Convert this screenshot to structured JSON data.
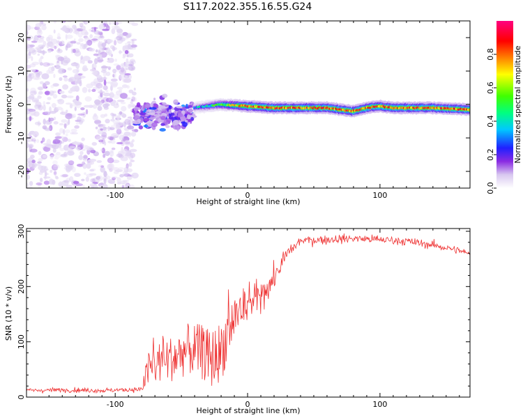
{
  "figure": {
    "title": "S117.2022.355.16.55.G24"
  },
  "chart_data": [
    {
      "type": "heatmap",
      "title": "S117.2022.355.16.55.G24",
      "xlabel": "Height of straight line (km)",
      "ylabel": "Frequency (Hz)",
      "xlim": [
        -167,
        168
      ],
      "ylim": [
        -25,
        25
      ],
      "x_ticks": [
        -100,
        0,
        100
      ],
      "y_ticks": [
        -20,
        -10,
        0,
        10,
        20
      ],
      "colorbar": {
        "label": "Normalized spectral amplitude",
        "range": [
          0,
          1
        ],
        "ticks": [
          0.0,
          0.2,
          0.4,
          0.6,
          0.8
        ],
        "colormap": [
          "#ffffff",
          "#d8c8f0",
          "#8a2be2",
          "#2020ff",
          "#00c8ff",
          "#00ff80",
          "#40ff00",
          "#ffff00",
          "#ff8000",
          "#ff0000",
          "#ff0080"
        ]
      },
      "regions": [
        {
          "x": [
            -167,
            -85
          ],
          "freq_range": [
            -25,
            25
          ],
          "amplitude_range": [
            0.0,
            0.15
          ],
          "pattern": "noise"
        },
        {
          "x": [
            -85,
            -40
          ],
          "freq_center": -3,
          "freq_spread": 5,
          "amplitude_range": [
            0.1,
            0.4
          ],
          "pattern": "scattered"
        },
        {
          "x": [
            -40,
            168
          ],
          "freq_center": -1,
          "freq_spread": 2,
          "amplitude_range": [
            0.2,
            1.0
          ],
          "pattern": "band"
        }
      ],
      "band_centerline": [
        {
          "x": -40,
          "f": -1
        },
        {
          "x": -20,
          "f": 0
        },
        {
          "x": 0,
          "f": -0.5
        },
        {
          "x": 20,
          "f": -1
        },
        {
          "x": 40,
          "f": -1
        },
        {
          "x": 60,
          "f": -1
        },
        {
          "x": 70,
          "f": -1.5
        },
        {
          "x": 80,
          "f": -2
        },
        {
          "x": 90,
          "f": -1
        },
        {
          "x": 100,
          "f": -0.5
        },
        {
          "x": 110,
          "f": -1
        },
        {
          "x": 120,
          "f": -1
        },
        {
          "x": 140,
          "f": -1
        },
        {
          "x": 168,
          "f": -1.5
        }
      ]
    },
    {
      "type": "line",
      "xlabel": "Height of straight line (km)",
      "ylabel": "SNR (10 * v/v)",
      "xlim": [
        -167,
        168
      ],
      "ylim": [
        0,
        305
      ],
      "x_ticks": [
        -100,
        0,
        100
      ],
      "y_ticks": [
        0,
        100,
        200,
        300
      ],
      "color": "#ee3030",
      "envelope": [
        {
          "x": -167,
          "y": 12
        },
        {
          "x": -140,
          "y": 13
        },
        {
          "x": -110,
          "y": 12
        },
        {
          "x": -80,
          "y": 14
        },
        {
          "x": -75,
          "y": 45
        },
        {
          "x": -65,
          "y": 60
        },
        {
          "x": -55,
          "y": 65
        },
        {
          "x": -45,
          "y": 80
        },
        {
          "x": -35,
          "y": 75
        },
        {
          "x": -28,
          "y": 60
        },
        {
          "x": -20,
          "y": 75
        },
        {
          "x": -10,
          "y": 140
        },
        {
          "x": 0,
          "y": 165
        },
        {
          "x": 10,
          "y": 185
        },
        {
          "x": 20,
          "y": 215
        },
        {
          "x": 30,
          "y": 260
        },
        {
          "x": 40,
          "y": 283
        },
        {
          "x": 60,
          "y": 285
        },
        {
          "x": 80,
          "y": 287
        },
        {
          "x": 100,
          "y": 285
        },
        {
          "x": 120,
          "y": 282
        },
        {
          "x": 140,
          "y": 275
        },
        {
          "x": 160,
          "y": 265
        },
        {
          "x": 168,
          "y": 258
        }
      ],
      "noise_amplitude": [
        {
          "x": -167,
          "a": 6
        },
        {
          "x": -80,
          "a": 6
        },
        {
          "x": -75,
          "a": 50
        },
        {
          "x": -20,
          "a": 80
        },
        {
          "x": 0,
          "a": 45
        },
        {
          "x": 20,
          "a": 30
        },
        {
          "x": 40,
          "a": 12
        },
        {
          "x": 168,
          "a": 10
        }
      ]
    }
  ]
}
